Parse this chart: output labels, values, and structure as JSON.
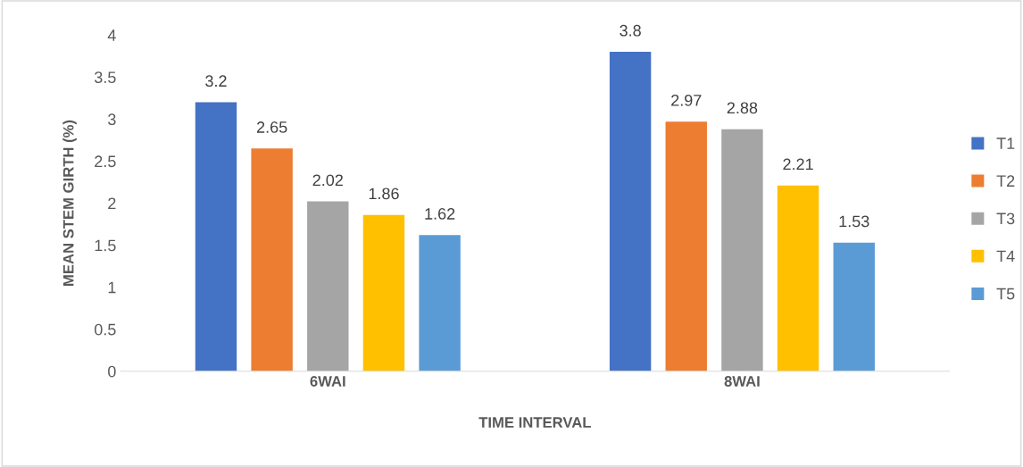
{
  "chart_data": {
    "type": "bar",
    "xlabel": "TIME INTERVAL",
    "ylabel": "MEAN STEM GIRTH (%)",
    "categories": [
      "6WAI",
      "8WAI"
    ],
    "series": [
      {
        "name": "T1",
        "color": "#4472c4",
        "values": [
          3.2,
          3.8
        ]
      },
      {
        "name": "T2",
        "color": "#ed7d31",
        "values": [
          2.65,
          2.97
        ]
      },
      {
        "name": "T3",
        "color": "#a5a5a5",
        "values": [
          2.02,
          2.88
        ]
      },
      {
        "name": "T4",
        "color": "#ffc000",
        "values": [
          1.86,
          2.21
        ]
      },
      {
        "name": "T5",
        "color": "#5b9bd5",
        "values": [
          1.62,
          1.53
        ]
      }
    ],
    "ylim": [
      0,
      4
    ],
    "yticks": [
      0,
      0.5,
      1,
      1.5,
      2,
      2.5,
      3,
      3.5,
      4
    ],
    "data_labels": true,
    "legend": "right",
    "grid": false
  }
}
